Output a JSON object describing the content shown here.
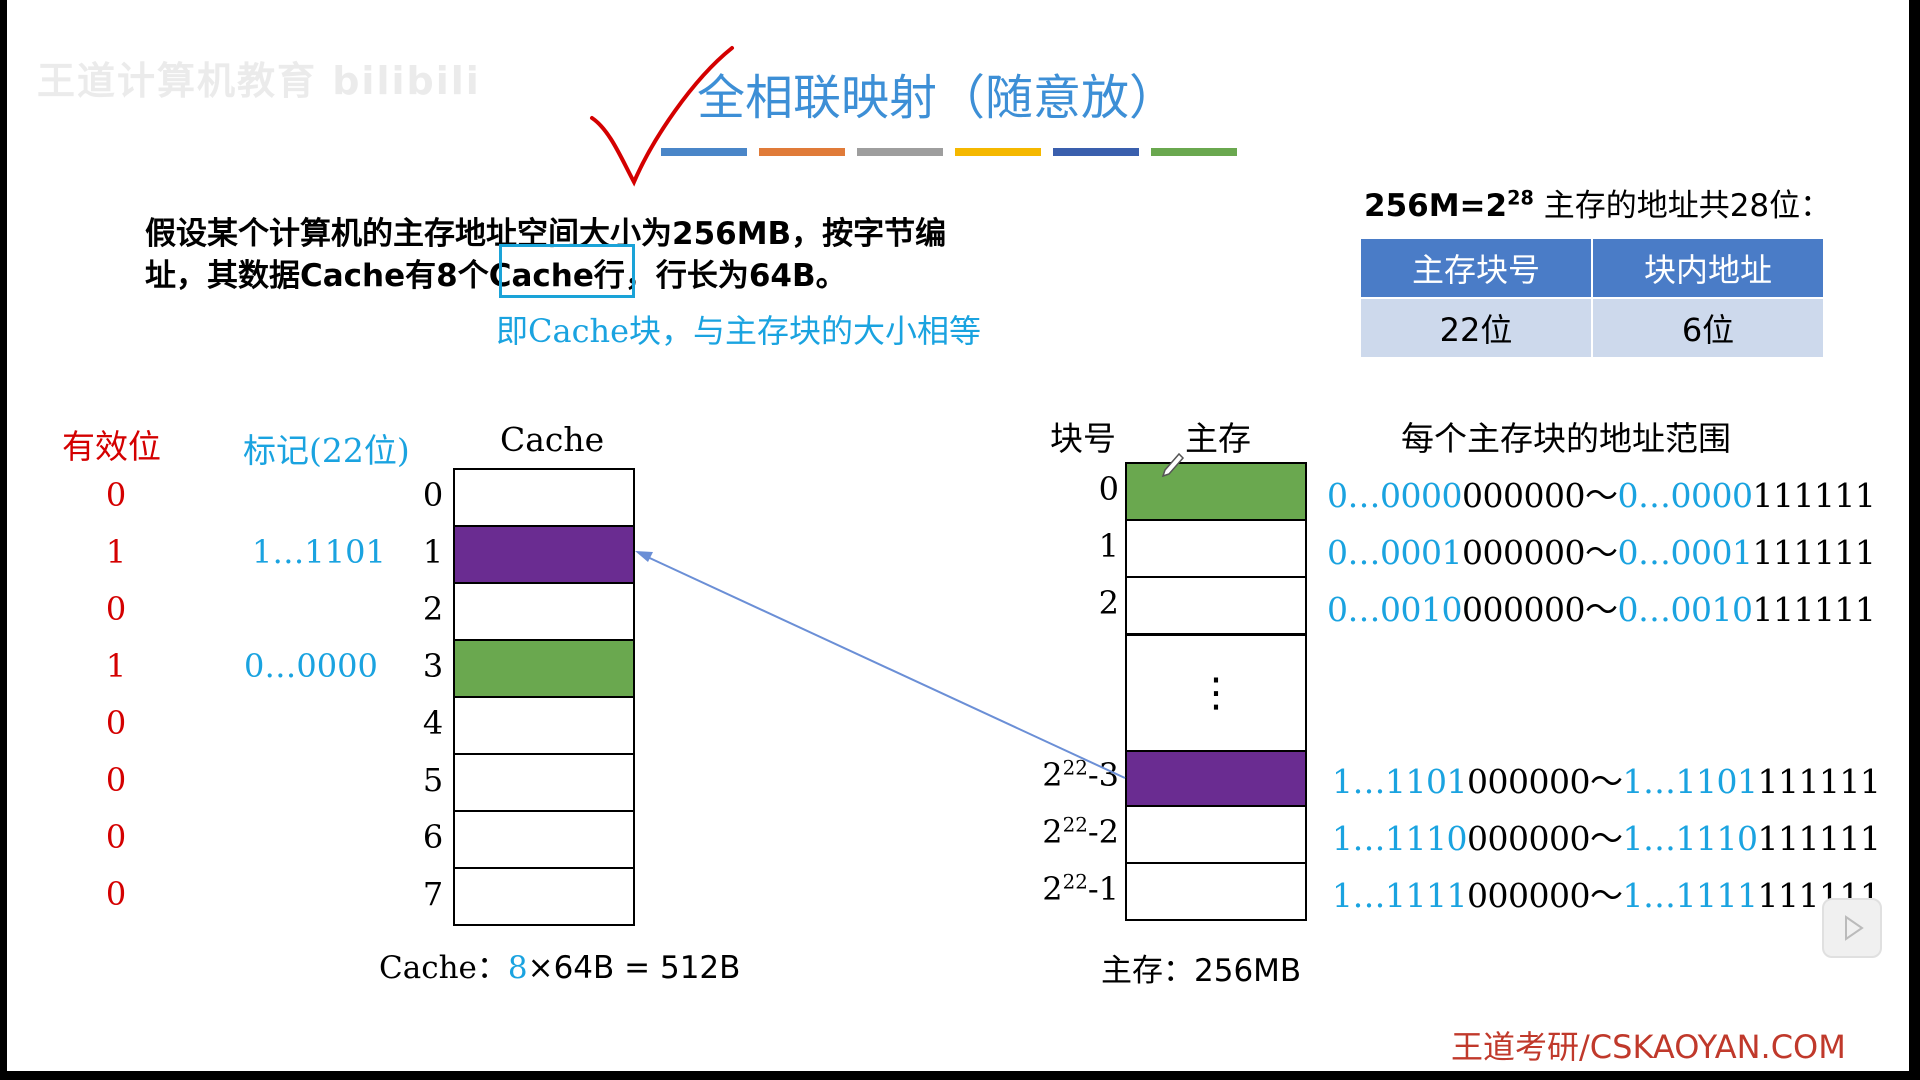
{
  "title": "全相联映射（随意放）",
  "watermark": "王道计算机教育 bilibili",
  "accent_bar_colors": [
    "#4a86c8",
    "#e07b39",
    "#9e9e9e",
    "#f5b800",
    "#3a5fad",
    "#6aa84f"
  ],
  "problem": {
    "line1": "假设某个计算机的主存地址空间大小为256MB，按字节编",
    "line2_a": "址，其数据Cache有8个",
    "line2_highlight": "Cache行",
    "line2_b": "，行长为64B。",
    "note": "即Cache块，与主存块的大小相等"
  },
  "address": {
    "prefix": "256M=2",
    "exp": "28",
    "suffix": " 主存的地址共28位：",
    "headers": [
      "主存块号",
      "块内地址"
    ],
    "values": [
      "22位",
      "6位"
    ]
  },
  "cache": {
    "header_valid": "有效位",
    "header_tag": "标记(22位)",
    "header_cache": "Cache",
    "valid_bits": [
      "0",
      "1",
      "0",
      "1",
      "0",
      "0",
      "0",
      "0"
    ],
    "tags": [
      "",
      "1…1101",
      "",
      "0…0000",
      "",
      "",
      "",
      ""
    ],
    "indices": [
      "0",
      "1",
      "2",
      "3",
      "4",
      "5",
      "6",
      "7"
    ],
    "line_colors": [
      "#ffffff",
      "#6a2c91",
      "#ffffff",
      "#6aa84f",
      "#ffffff",
      "#ffffff",
      "#ffffff",
      "#ffffff"
    ],
    "size_label_a": "Cache：",
    "size_label_n": "8",
    "size_label_b": "×64B = 512B"
  },
  "memory": {
    "header_block": "块号",
    "header_mem": "主存",
    "header_range": "每个主存块的地址范围",
    "ellipsis": "⋮",
    "blocks": [
      {
        "base": "0",
        "exp": "",
        "sub": "",
        "color": "#6aa84f",
        "range_start_blue": "0…0000",
        "range_start_black": "000000",
        "range_end_blue": "0…0000",
        "range_end_black": "111111"
      },
      {
        "base": "1",
        "exp": "",
        "sub": "",
        "color": "#ffffff",
        "range_start_blue": "0…0001",
        "range_start_black": "000000",
        "range_end_blue": "0…0001",
        "range_end_black": "111111"
      },
      {
        "base": "2",
        "exp": "",
        "sub": "",
        "color": "#ffffff",
        "range_start_blue": "0…0010",
        "range_start_black": "000000",
        "range_end_blue": "0…0010",
        "range_end_black": "111111"
      },
      {
        "base": "2",
        "exp": "22",
        "sub": "-3",
        "color": "#6a2c91",
        "range_start_blue": "1…1101",
        "range_start_black": "000000",
        "range_end_blue": "1…1101",
        "range_end_black": "111111"
      },
      {
        "base": "2",
        "exp": "22",
        "sub": "-2",
        "color": "#ffffff",
        "range_start_blue": "1…1110",
        "range_start_black": "000000",
        "range_end_blue": "1…1110",
        "range_end_black": "111111"
      },
      {
        "base": "2",
        "exp": "22",
        "sub": "-1",
        "color": "#ffffff",
        "range_start_blue": "1…1111",
        "range_start_black": "000000",
        "range_end_blue": "1…1111",
        "range_end_black": "111111"
      }
    ],
    "tilde": "～",
    "size_label": "主存：256MB"
  },
  "footer": "王道考研/CSKAOYAN.COM"
}
